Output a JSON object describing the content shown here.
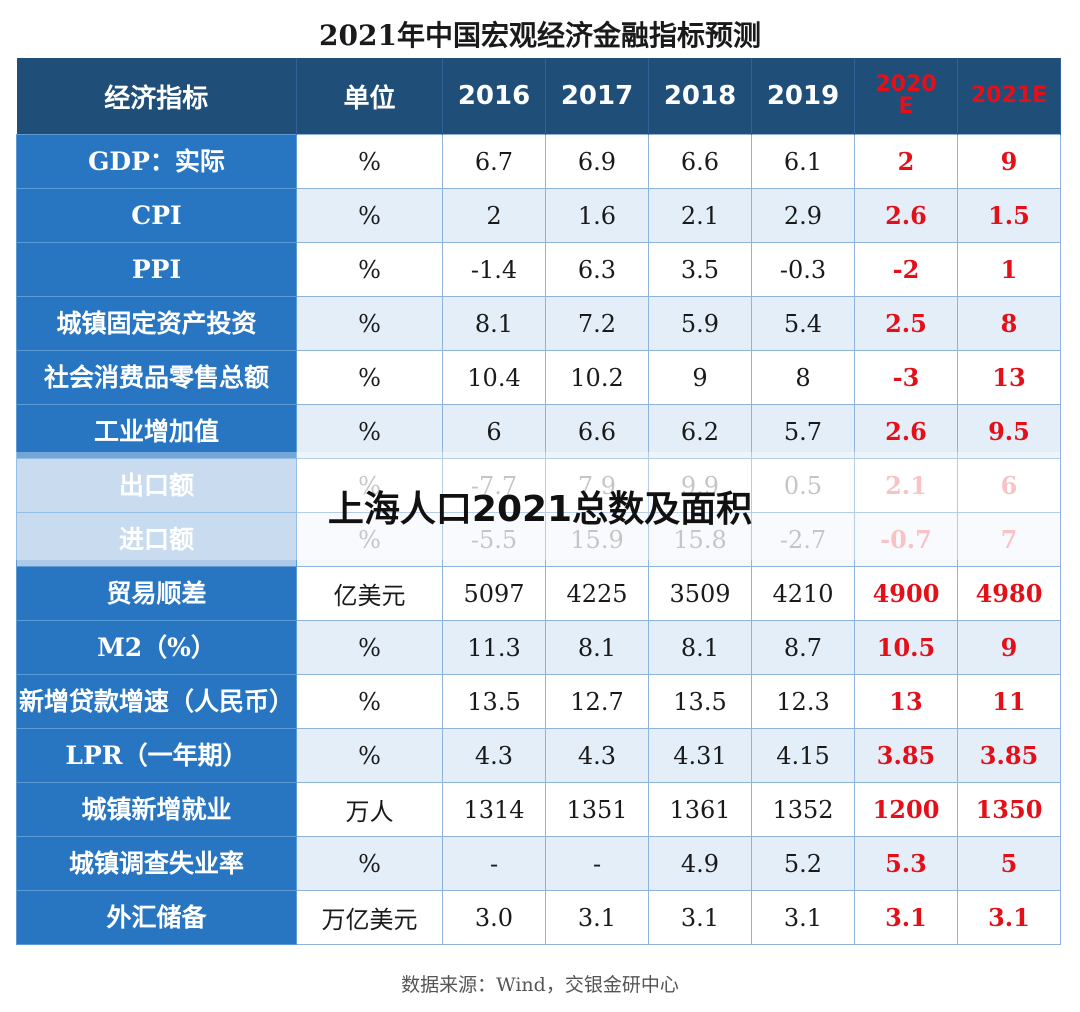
{
  "title": "2021年中国宏观经济金融指标预测",
  "header": [
    "经济指标",
    "单位",
    "2016",
    "2017",
    "2018",
    "2019",
    "2020\nE",
    "2021E"
  ],
  "rows": [
    {
      "name": "GDP：实际",
      "unit": "%",
      "values": [
        "6.7",
        "6.9",
        "6.6",
        "6.1",
        "2",
        "9"
      ]
    },
    {
      "name": "CPI",
      "unit": "%",
      "values": [
        "2",
        "1.6",
        "2.1",
        "2.9",
        "2.6",
        "1.5"
      ]
    },
    {
      "name": "PPI",
      "unit": "%",
      "values": [
        "-1.4",
        "6.3",
        "3.5",
        "-0.3",
        "-2",
        "1"
      ]
    },
    {
      "name": "城镇固定资产投资",
      "unit": "%",
      "values": [
        "8.1",
        "7.2",
        "5.9",
        "5.4",
        "2.5",
        "8"
      ]
    },
    {
      "name": "社会消费品零售总额",
      "unit": "%",
      "values": [
        "10.4",
        "10.2",
        "9",
        "8",
        "-3",
        "13"
      ]
    },
    {
      "name": "工业增加值",
      "unit": "%",
      "values": [
        "6",
        "6.6",
        "6.2",
        "5.7",
        "2.6",
        "9.5"
      ]
    },
    {
      "name": "出口额",
      "unit": "%",
      "values": [
        "-7.7",
        "7.9",
        "9.9",
        "0.5",
        "2.1",
        "6"
      ]
    },
    {
      "name": "进口额",
      "unit": "%",
      "values": [
        "-5.5",
        "15.9",
        "15.8",
        "-2.7",
        "-0.7",
        "7"
      ]
    },
    {
      "name": "贸易顺差",
      "unit": "亿美元",
      "values": [
        "5097",
        "4225",
        "3509",
        "4210",
        "4900",
        "4980"
      ]
    },
    {
      "name": "M2（%）",
      "unit": "%",
      "values": [
        "11.3",
        "8.1",
        "8.1",
        "8.7",
        "10.5",
        "9"
      ]
    },
    {
      "name": "新增贷款增速（人民币）",
      "unit": "%",
      "values": [
        "13.5",
        "12.7",
        "13.5",
        "12.3",
        "13",
        "11"
      ]
    },
    {
      "name": "LPR（一年期）",
      "unit": "%",
      "values": [
        "4.3",
        "4.3",
        "4.31",
        "4.15",
        "3.85",
        "3.85"
      ]
    },
    {
      "name": "城镇新增就业",
      "unit": "万人",
      "values": [
        "1314",
        "1351",
        "1361",
        "1352",
        "1200",
        "1350"
      ]
    },
    {
      "name": "城镇调查失业率",
      "unit": "%",
      "values": [
        "-",
        "-",
        "4.9",
        "5.2",
        "5.3",
        "5"
      ]
    },
    {
      "name": "外汇储备",
      "unit": "万亿美元",
      "values": [
        "3.0",
        "3.1",
        "3.1",
        "3.1",
        "3.1",
        "3.1"
      ]
    }
  ],
  "overlay_text": "上海人口2021总数及面积",
  "source": "数据来源：Wind，交银金研中心",
  "colors": {
    "header_bg": "#1f4e79",
    "name_bg": "#2876c2",
    "forecast": "#e3101a",
    "alt_bg": "#e4eef8"
  }
}
